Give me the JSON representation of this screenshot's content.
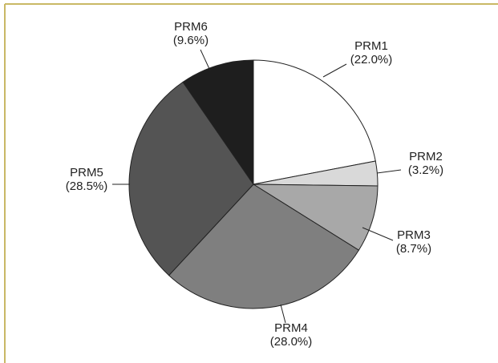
{
  "chart_data": {
    "type": "pie",
    "categories": [
      "PRM1",
      "PRM2",
      "PRM3",
      "PRM4",
      "PRM5",
      "PRM6"
    ],
    "values": [
      22.0,
      3.2,
      8.7,
      28.0,
      28.5,
      9.6
    ],
    "value_labels": [
      "(22.0%)",
      "(3.2%)",
      "(8.7%)",
      "(28.0%)",
      "(28.5%)",
      "(9.6%)"
    ],
    "colors": [
      "#ffffff",
      "#d9d9d9",
      "#a8a8a8",
      "#7f7f7f",
      "#545454",
      "#1e1e1e"
    ]
  }
}
